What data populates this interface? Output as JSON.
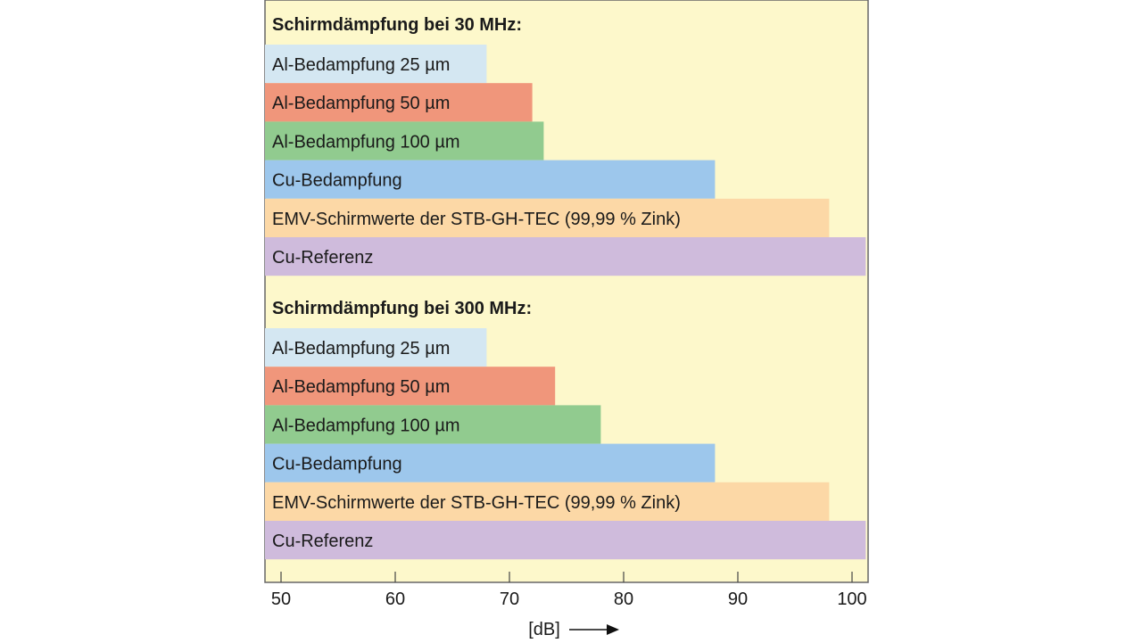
{
  "chart_data": {
    "type": "bar",
    "orientation": "horizontal",
    "xlabel": "[dB]",
    "xlim": [
      48.6,
      101.2
    ],
    "xticks": [
      "50",
      "60",
      "70",
      "80",
      "90",
      "100"
    ],
    "xtick_values": [
      50,
      60,
      70,
      80,
      90,
      100
    ],
    "grid": false,
    "groups": [
      {
        "title": "Schirmdämpfung bei 30 MHz:",
        "bars": [
          {
            "label": "Al-Bedampfung 25 µm",
            "value": 68,
            "color": "#d4e7f2"
          },
          {
            "label": "Al-Bedampfung 50 µm",
            "value": 72,
            "color": "#f0967b"
          },
          {
            "label": "Al-Bedampfung 100 µm",
            "value": 73,
            "color": "#91cb8f"
          },
          {
            "label": "Cu-Bedampfung",
            "value": 88,
            "color": "#9dc7ec"
          },
          {
            "label": "EMV-Schirmwerte der STB-GH-TEC (99,99 % Zink)",
            "value": 98,
            "color": "#fcd8a6"
          },
          {
            "label": "Cu-Referenz",
            "value": 101.2,
            "color": "#cfbbdc"
          }
        ]
      },
      {
        "title": "Schirmdämpfung bei 300 MHz:",
        "bars": [
          {
            "label": "Al-Bedampfung 25 µm",
            "value": 68,
            "color": "#d4e7f2"
          },
          {
            "label": "Al-Bedampfung 50 µm",
            "value": 74,
            "color": "#f0967b"
          },
          {
            "label": "Al-Bedampfung 100 µm",
            "value": 78,
            "color": "#91cb8f"
          },
          {
            "label": "Cu-Bedampfung",
            "value": 88,
            "color": "#9dc7ec"
          },
          {
            "label": "EMV-Schirmwerte der STB-GH-TEC (99,99 % Zink)",
            "value": 98,
            "color": "#fcd8a6"
          },
          {
            "label": "Cu-Referenz",
            "value": 101.2,
            "color": "#cfbbdc"
          }
        ]
      }
    ],
    "background": "#fdf8cb"
  }
}
